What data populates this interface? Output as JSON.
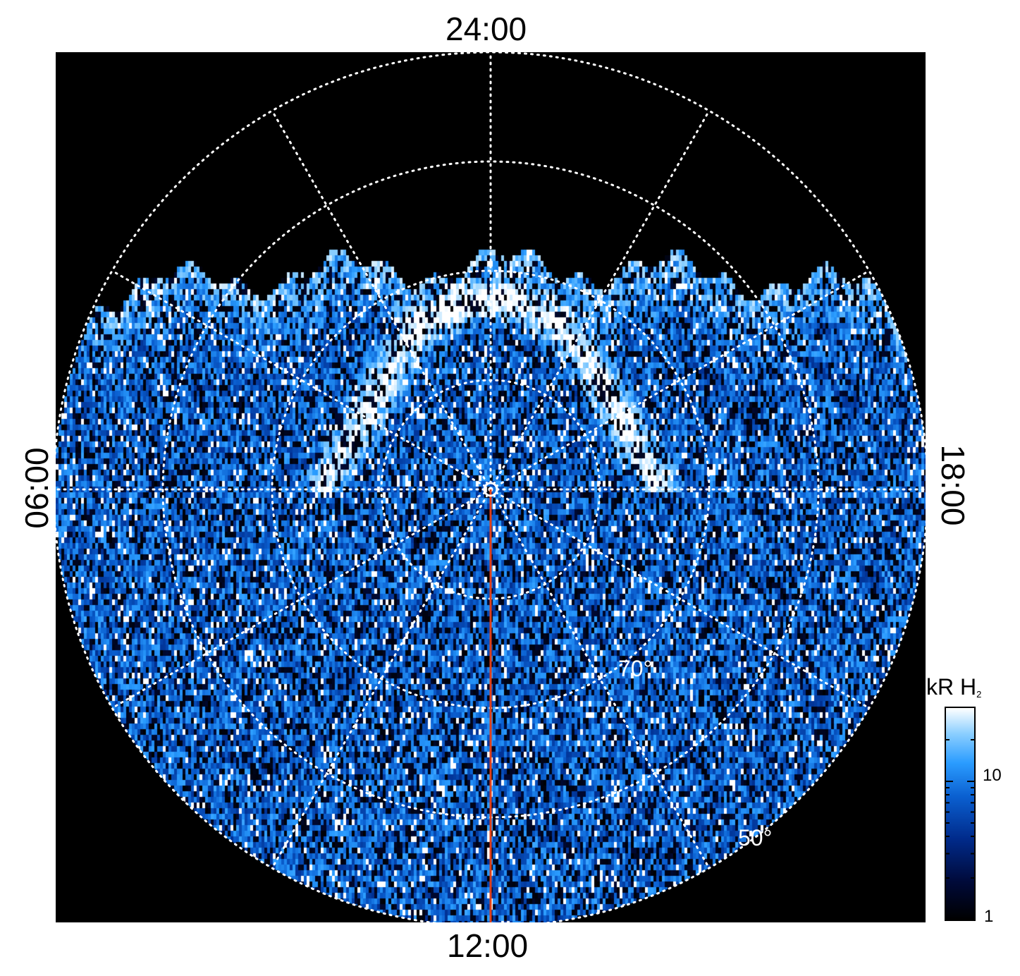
{
  "local_time_labels": {
    "top": "24:00",
    "bottom": "12:00",
    "left": "06:00",
    "right": "18:00"
  },
  "latitude_labels": {
    "inner": "70°",
    "outer": "50°"
  },
  "colorbar": {
    "title": "kR H",
    "title_subscript": "2",
    "tick_labels": [
      "10",
      "1"
    ],
    "colors": [
      "#000000",
      "#000a3a",
      "#002a8a",
      "#0a5fd0",
      "#2a9cff",
      "#8ccfff",
      "#ffffff"
    ]
  },
  "colors": {
    "background": "#000000",
    "grid": "#ffffff",
    "meridian_line": "#e0401a"
  }
}
